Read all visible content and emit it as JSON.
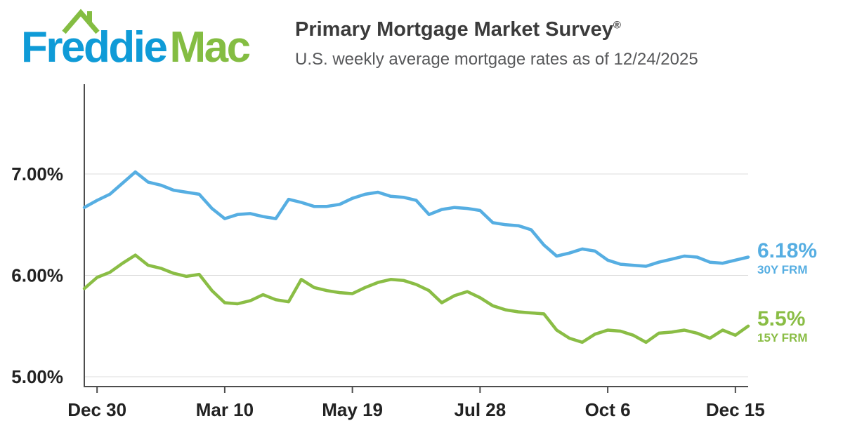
{
  "header": {
    "logo": {
      "word_blue": "Freddie",
      "word_green": "Mac",
      "roof_icon": "roof-with-chimney-icon"
    },
    "title": "Primary Mortgage Market Survey",
    "registered_mark": "®",
    "subtitle": "U.S. weekly average mortgage rates as of 12/24/2025"
  },
  "annotations": {
    "series_30y": {
      "value": "6.18%",
      "label": "30Y FRM"
    },
    "series_15y": {
      "value": "5.5%",
      "label": "15Y FRM"
    }
  },
  "colors": {
    "logo_blue": "#0F9BD7",
    "logo_green": "#84BD42",
    "line_blue": "#56AEE2",
    "line_green": "#8ABD45",
    "title_text": "#3B3B3B",
    "subtitle_text": "#58595B",
    "axis_text": "#222222",
    "axis_line": "#4D4D4D",
    "gridline": "#DCDCDC"
  },
  "chart_data": {
    "type": "line",
    "title": "Primary Mortgage Market Survey",
    "subtitle": "U.S. weekly average mortgage rates as of 12/24/2025",
    "grid": "horizontal",
    "legend_position": "right-of-line-endpoints",
    "ylim": [
      4.9,
      7.9
    ],
    "y_ticks": [
      {
        "value": 7.0,
        "label": "7.00%"
      },
      {
        "value": 6.0,
        "label": "6.00%"
      },
      {
        "value": 5.0,
        "label": "5.00%"
      }
    ],
    "x_ticks": [
      {
        "index": 1,
        "label": "Dec 30"
      },
      {
        "index": 11,
        "label": "Mar 10"
      },
      {
        "index": 21,
        "label": "May 19"
      },
      {
        "index": 31,
        "label": "Jul 28"
      },
      {
        "index": 41,
        "label": "Oct 6"
      },
      {
        "index": 51,
        "label": "Dec 15"
      }
    ],
    "series": [
      {
        "id": "30y-frm",
        "name": "30Y FRM",
        "color": "#56AEE2",
        "final_value_label": "6.18%",
        "values": [
          6.67,
          6.74,
          6.8,
          6.91,
          7.02,
          6.92,
          6.89,
          6.84,
          6.82,
          6.8,
          6.66,
          6.56,
          6.6,
          6.61,
          6.58,
          6.56,
          6.75,
          6.72,
          6.68,
          6.68,
          6.7,
          6.76,
          6.8,
          6.82,
          6.78,
          6.77,
          6.74,
          6.6,
          6.65,
          6.67,
          6.66,
          6.64,
          6.52,
          6.5,
          6.49,
          6.45,
          6.3,
          6.19,
          6.22,
          6.26,
          6.24,
          6.15,
          6.11,
          6.1,
          6.09,
          6.13,
          6.16,
          6.19,
          6.18,
          6.13,
          6.12,
          6.15,
          6.18
        ]
      },
      {
        "id": "15y-frm",
        "name": "15Y FRM",
        "color": "#8ABD45",
        "final_value_label": "5.5%",
        "values": [
          5.87,
          5.98,
          6.03,
          6.12,
          6.2,
          6.1,
          6.07,
          6.02,
          5.99,
          6.01,
          5.85,
          5.73,
          5.72,
          5.75,
          5.81,
          5.76,
          5.74,
          5.96,
          5.88,
          5.85,
          5.83,
          5.82,
          5.88,
          5.93,
          5.96,
          5.95,
          5.91,
          5.85,
          5.73,
          5.8,
          5.84,
          5.78,
          5.7,
          5.66,
          5.64,
          5.63,
          5.62,
          5.46,
          5.38,
          5.34,
          5.42,
          5.46,
          5.45,
          5.41,
          5.34,
          5.43,
          5.44,
          5.46,
          5.43,
          5.38,
          5.46,
          5.41,
          5.5
        ]
      }
    ]
  }
}
